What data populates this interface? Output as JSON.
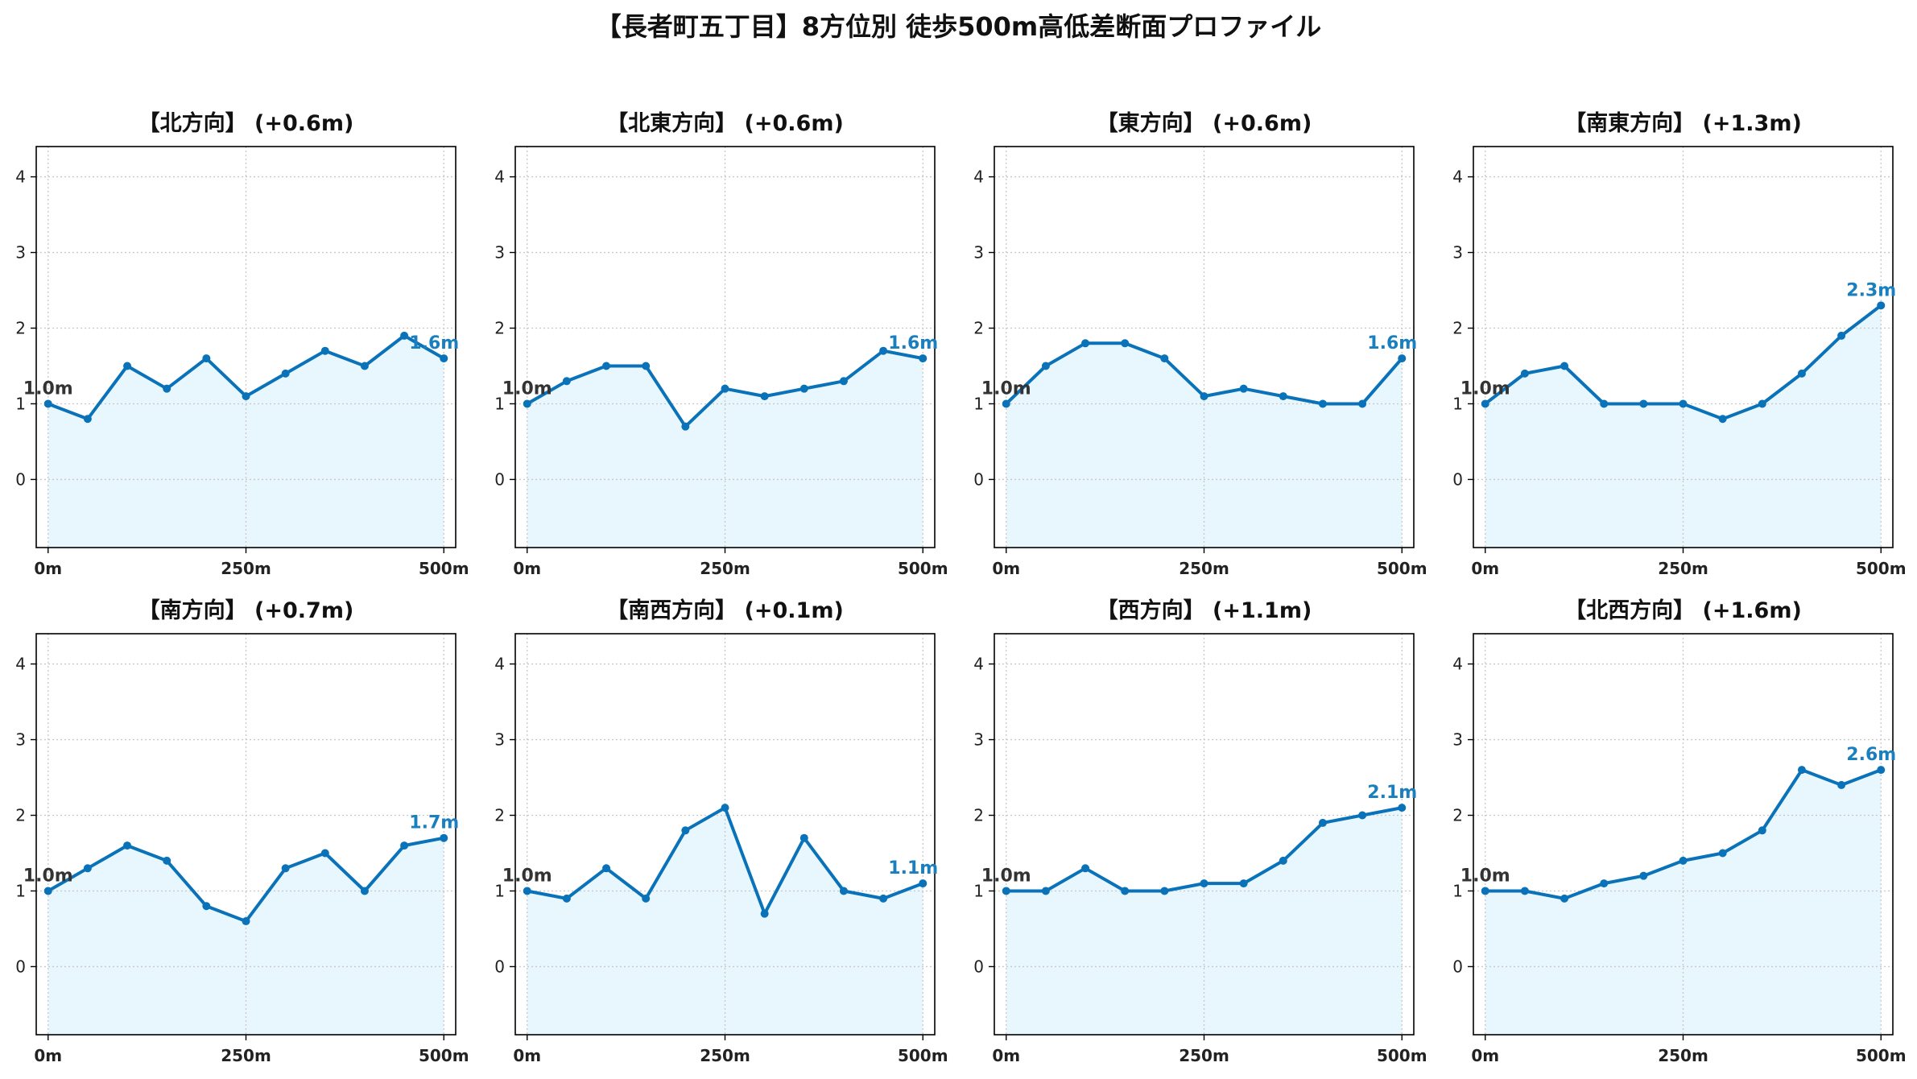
{
  "title": "【長者町五丁目】8方位別 徒歩500m高低差断面プロファイル",
  "colors": {
    "line": "#0a72b8",
    "fill": "#e8f6fd",
    "grid": "#c8c8c8",
    "start_label": "#333333",
    "end_label": "#1a7fbf"
  },
  "chart_data": [
    {
      "type": "area",
      "title": "【北方向】 (+0.6m)",
      "x": [
        0,
        50,
        100,
        150,
        200,
        250,
        300,
        350,
        400,
        450,
        500
      ],
      "values": [
        1.0,
        0.8,
        1.5,
        1.2,
        1.6,
        1.1,
        1.4,
        1.7,
        1.5,
        1.9,
        1.6
      ],
      "start_label": "1.0m",
      "end_label": "1.6m",
      "xticks": [
        "0m",
        "250m",
        "500m"
      ],
      "yticks": [
        "0",
        "1",
        "2",
        "3",
        "4"
      ],
      "ylim": [
        -0.9,
        4.4
      ],
      "xlim": [
        -15,
        515
      ],
      "grid": true
    },
    {
      "type": "area",
      "title": "【北東方向】 (+0.6m)",
      "x": [
        0,
        50,
        100,
        150,
        200,
        250,
        300,
        350,
        400,
        450,
        500
      ],
      "values": [
        1.0,
        1.3,
        1.5,
        1.5,
        0.7,
        1.2,
        1.1,
        1.2,
        1.3,
        1.7,
        1.6
      ],
      "start_label": "1.0m",
      "end_label": "1.6m",
      "xticks": [
        "0m",
        "250m",
        "500m"
      ],
      "yticks": [
        "0",
        "1",
        "2",
        "3",
        "4"
      ],
      "ylim": [
        -0.9,
        4.4
      ],
      "xlim": [
        -15,
        515
      ],
      "grid": true
    },
    {
      "type": "area",
      "title": "【東方向】 (+0.6m)",
      "x": [
        0,
        50,
        100,
        150,
        200,
        250,
        300,
        350,
        400,
        450,
        500
      ],
      "values": [
        1.0,
        1.5,
        1.8,
        1.8,
        1.6,
        1.1,
        1.2,
        1.1,
        1.0,
        1.0,
        1.6
      ],
      "start_label": "1.0m",
      "end_label": "1.6m",
      "xticks": [
        "0m",
        "250m",
        "500m"
      ],
      "yticks": [
        "0",
        "1",
        "2",
        "3",
        "4"
      ],
      "ylim": [
        -0.9,
        4.4
      ],
      "xlim": [
        -15,
        515
      ],
      "grid": true
    },
    {
      "type": "area",
      "title": "【南東方向】 (+1.3m)",
      "x": [
        0,
        50,
        100,
        150,
        200,
        250,
        300,
        350,
        400,
        450,
        500
      ],
      "values": [
        1.0,
        1.4,
        1.5,
        1.0,
        1.0,
        1.0,
        0.8,
        1.0,
        1.4,
        1.9,
        2.3
      ],
      "start_label": "1.0m",
      "end_label": "2.3m",
      "xticks": [
        "0m",
        "250m",
        "500m"
      ],
      "yticks": [
        "0",
        "1",
        "2",
        "3",
        "4"
      ],
      "ylim": [
        -0.9,
        4.4
      ],
      "xlim": [
        -15,
        515
      ],
      "grid": true
    },
    {
      "type": "area",
      "title": "【南方向】 (+0.7m)",
      "x": [
        0,
        50,
        100,
        150,
        200,
        250,
        300,
        350,
        400,
        450,
        500
      ],
      "values": [
        1.0,
        1.3,
        1.6,
        1.4,
        0.8,
        0.6,
        1.3,
        1.5,
        1.0,
        1.6,
        1.7
      ],
      "start_label": "1.0m",
      "end_label": "1.7m",
      "xticks": [
        "0m",
        "250m",
        "500m"
      ],
      "yticks": [
        "0",
        "1",
        "2",
        "3",
        "4"
      ],
      "ylim": [
        -0.9,
        4.4
      ],
      "xlim": [
        -15,
        515
      ],
      "grid": true
    },
    {
      "type": "area",
      "title": "【南西方向】 (+0.1m)",
      "x": [
        0,
        50,
        100,
        150,
        200,
        250,
        300,
        350,
        400,
        450,
        500
      ],
      "values": [
        1.0,
        0.9,
        1.3,
        0.9,
        1.8,
        2.1,
        0.7,
        1.7,
        1.0,
        0.9,
        1.1
      ],
      "start_label": "1.0m",
      "end_label": "1.1m",
      "xticks": [
        "0m",
        "250m",
        "500m"
      ],
      "yticks": [
        "0",
        "1",
        "2",
        "3",
        "4"
      ],
      "ylim": [
        -0.9,
        4.4
      ],
      "xlim": [
        -15,
        515
      ],
      "grid": true
    },
    {
      "type": "area",
      "title": "【西方向】 (+1.1m)",
      "x": [
        0,
        50,
        100,
        150,
        200,
        250,
        300,
        350,
        400,
        450,
        500
      ],
      "values": [
        1.0,
        1.0,
        1.3,
        1.0,
        1.0,
        1.1,
        1.1,
        1.4,
        1.9,
        2.0,
        2.1
      ],
      "start_label": "1.0m",
      "end_label": "2.1m",
      "xticks": [
        "0m",
        "250m",
        "500m"
      ],
      "yticks": [
        "0",
        "1",
        "2",
        "3",
        "4"
      ],
      "ylim": [
        -0.9,
        4.4
      ],
      "xlim": [
        -15,
        515
      ],
      "grid": true
    },
    {
      "type": "area",
      "title": "【北西方向】 (+1.6m)",
      "x": [
        0,
        50,
        100,
        150,
        200,
        250,
        300,
        350,
        400,
        450,
        500
      ],
      "values": [
        1.0,
        1.0,
        0.9,
        1.1,
        1.2,
        1.4,
        1.5,
        1.8,
        2.6,
        2.4,
        2.6
      ],
      "start_label": "1.0m",
      "end_label": "2.6m",
      "xticks": [
        "0m",
        "250m",
        "500m"
      ],
      "yticks": [
        "0",
        "1",
        "2",
        "3",
        "4"
      ],
      "ylim": [
        -0.9,
        4.4
      ],
      "xlim": [
        -15,
        515
      ],
      "grid": true
    }
  ]
}
